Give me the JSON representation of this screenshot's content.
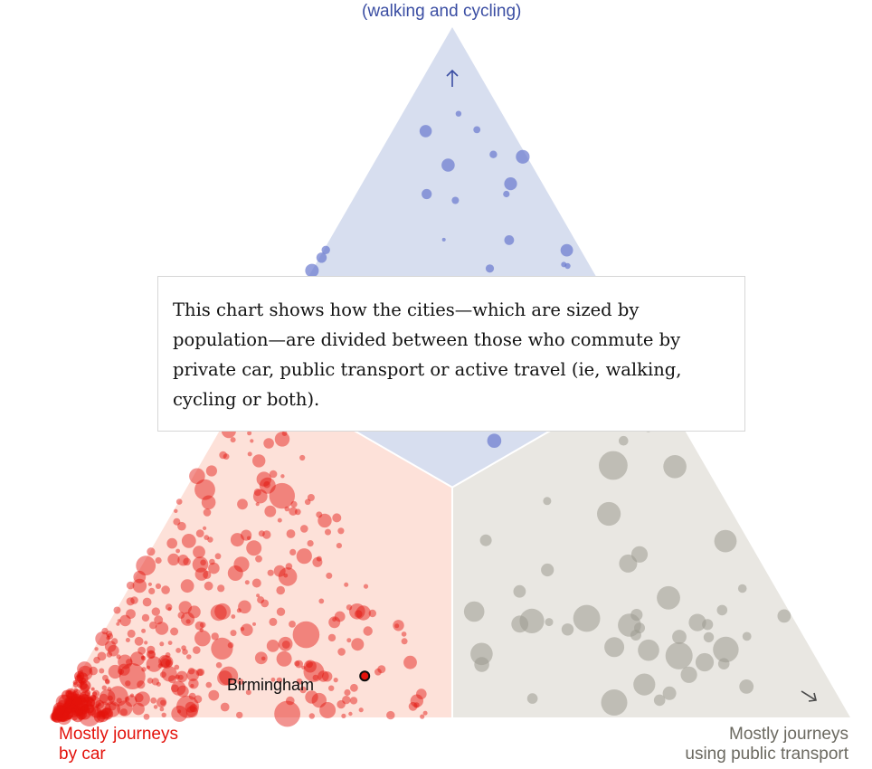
{
  "chart_data": {
    "type": "ternary-scatter",
    "corner_labels": {
      "car": [
        "Mostly journeys",
        "by car"
      ],
      "transit": [
        "Mostly journeys",
        "using public transport"
      ],
      "active": "(walking and cycling)"
    },
    "explainer": "This chart shows how the cities—which are sized by population—are divided between those who commute by private car, public transport or active travel (ie, walking, cycling or both).",
    "highlight": {
      "name": "Birmingham",
      "car": 0.58,
      "transit": 0.36,
      "active": 0.06
    },
    "region_colors": {
      "car": "#fde1d9",
      "transit": "#e9e7e2",
      "active": "#d7deef"
    },
    "point_colors": {
      "car": "#e3120b",
      "transit": "#9c9a90",
      "active": "#6979cf"
    },
    "seed": 7
  }
}
